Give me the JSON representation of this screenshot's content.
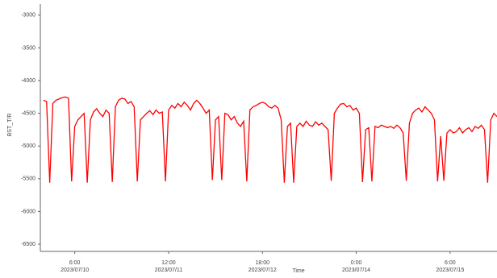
{
  "chart_data": {
    "type": "line",
    "y_label": "BST_T/R",
    "x_label": "Time",
    "xlim": [
      -5,
      141
    ],
    "ylim": [
      -6610,
      -2830
    ],
    "yticks": [
      -3000,
      -3500,
      -4000,
      -4500,
      -5000,
      -5500,
      -6000,
      -6500
    ],
    "xticks": [
      {
        "value": 6,
        "label": [
          "6:00",
          "2023/07/10"
        ]
      },
      {
        "value": 36,
        "label": [
          "12:00",
          "2023/07/11"
        ]
      },
      {
        "value": 66,
        "label": [
          "18:00",
          "2023/07/12"
        ]
      },
      {
        "value": 96,
        "label": [
          "0:00",
          "2023/07/14"
        ]
      },
      {
        "value": 126,
        "label": [
          "6:00",
          "2023/07/15"
        ]
      }
    ],
    "x": [
      -4,
      -3,
      -2,
      -1,
      0,
      1,
      2,
      3,
      4,
      5,
      6,
      7,
      8,
      9,
      10,
      11,
      12,
      13,
      14,
      15,
      16,
      17,
      18,
      19,
      20,
      21,
      22,
      23,
      24,
      25,
      26,
      27,
      28,
      29,
      30,
      31,
      32,
      33,
      34,
      35,
      36,
      37,
      38,
      39,
      40,
      41,
      42,
      43,
      44,
      45,
      46,
      47,
      48,
      49,
      50,
      51,
      52,
      53,
      54,
      55,
      56,
      57,
      58,
      59,
      60,
      61,
      62,
      63,
      64,
      65,
      66,
      67,
      68,
      69,
      70,
      71,
      72,
      73,
      74,
      75,
      76,
      77,
      78,
      79,
      80,
      81,
      82,
      83,
      84,
      85,
      86,
      87,
      88,
      89,
      90,
      91,
      92,
      93,
      94,
      95,
      96,
      97,
      98,
      99,
      100,
      101,
      102,
      103,
      104,
      105,
      106,
      107,
      108,
      109,
      110,
      111,
      112,
      113,
      114,
      115,
      116,
      117,
      118,
      119,
      120,
      121,
      122,
      123,
      124,
      125,
      126,
      127,
      128,
      129,
      130,
      131,
      132,
      133,
      134,
      135,
      136,
      137,
      138,
      139,
      140,
      141
    ],
    "series": [
      {
        "color": "#ff0000",
        "values": [
          -4300,
          -4320,
          -5560,
          -4350,
          -4300,
          -4280,
          -4260,
          -4250,
          -4270,
          -5540,
          -4700,
          -4600,
          -4550,
          -4500,
          -5560,
          -4600,
          -4480,
          -4430,
          -4500,
          -4550,
          -4450,
          -4500,
          -5550,
          -4400,
          -4300,
          -4270,
          -4280,
          -4350,
          -4320,
          -4400,
          -5540,
          -4600,
          -4550,
          -4500,
          -4460,
          -4520,
          -4450,
          -4500,
          -4480,
          -5540,
          -4450,
          -4380,
          -4420,
          -4350,
          -4400,
          -4330,
          -4380,
          -4450,
          -4350,
          -4300,
          -4350,
          -4420,
          -4500,
          -4450,
          -5520,
          -4600,
          -4550,
          -5520,
          -4500,
          -4520,
          -4600,
          -4550,
          -4650,
          -4700,
          -4620,
          -5540,
          -4450,
          -4400,
          -4380,
          -4350,
          -4330,
          -4350,
          -4400,
          -4420,
          -4380,
          -4420,
          -4600,
          -5560,
          -4700,
          -4650,
          -5560,
          -4700,
          -4650,
          -4700,
          -4620,
          -4680,
          -4700,
          -4630,
          -4680,
          -4650,
          -4700,
          -4750,
          -5530,
          -4500,
          -4420,
          -4360,
          -4350,
          -4400,
          -4380,
          -4450,
          -4420,
          -4500,
          -5550,
          -4750,
          -4720,
          -5540,
          -4700,
          -4720,
          -4680,
          -4700,
          -4720,
          -4700,
          -4730,
          -4680,
          -4720,
          -4800,
          -5530,
          -4650,
          -4500,
          -4450,
          -4420,
          -4480,
          -4400,
          -4450,
          -4500,
          -4600,
          -5540,
          -4850,
          -5530,
          -4800,
          -4750,
          -4800,
          -4780,
          -4720,
          -4800,
          -4750,
          -4720,
          -4780,
          -4700,
          -4730,
          -4680,
          -4750,
          -5560,
          -4600,
          -4500,
          -4550
        ]
      }
    ]
  }
}
